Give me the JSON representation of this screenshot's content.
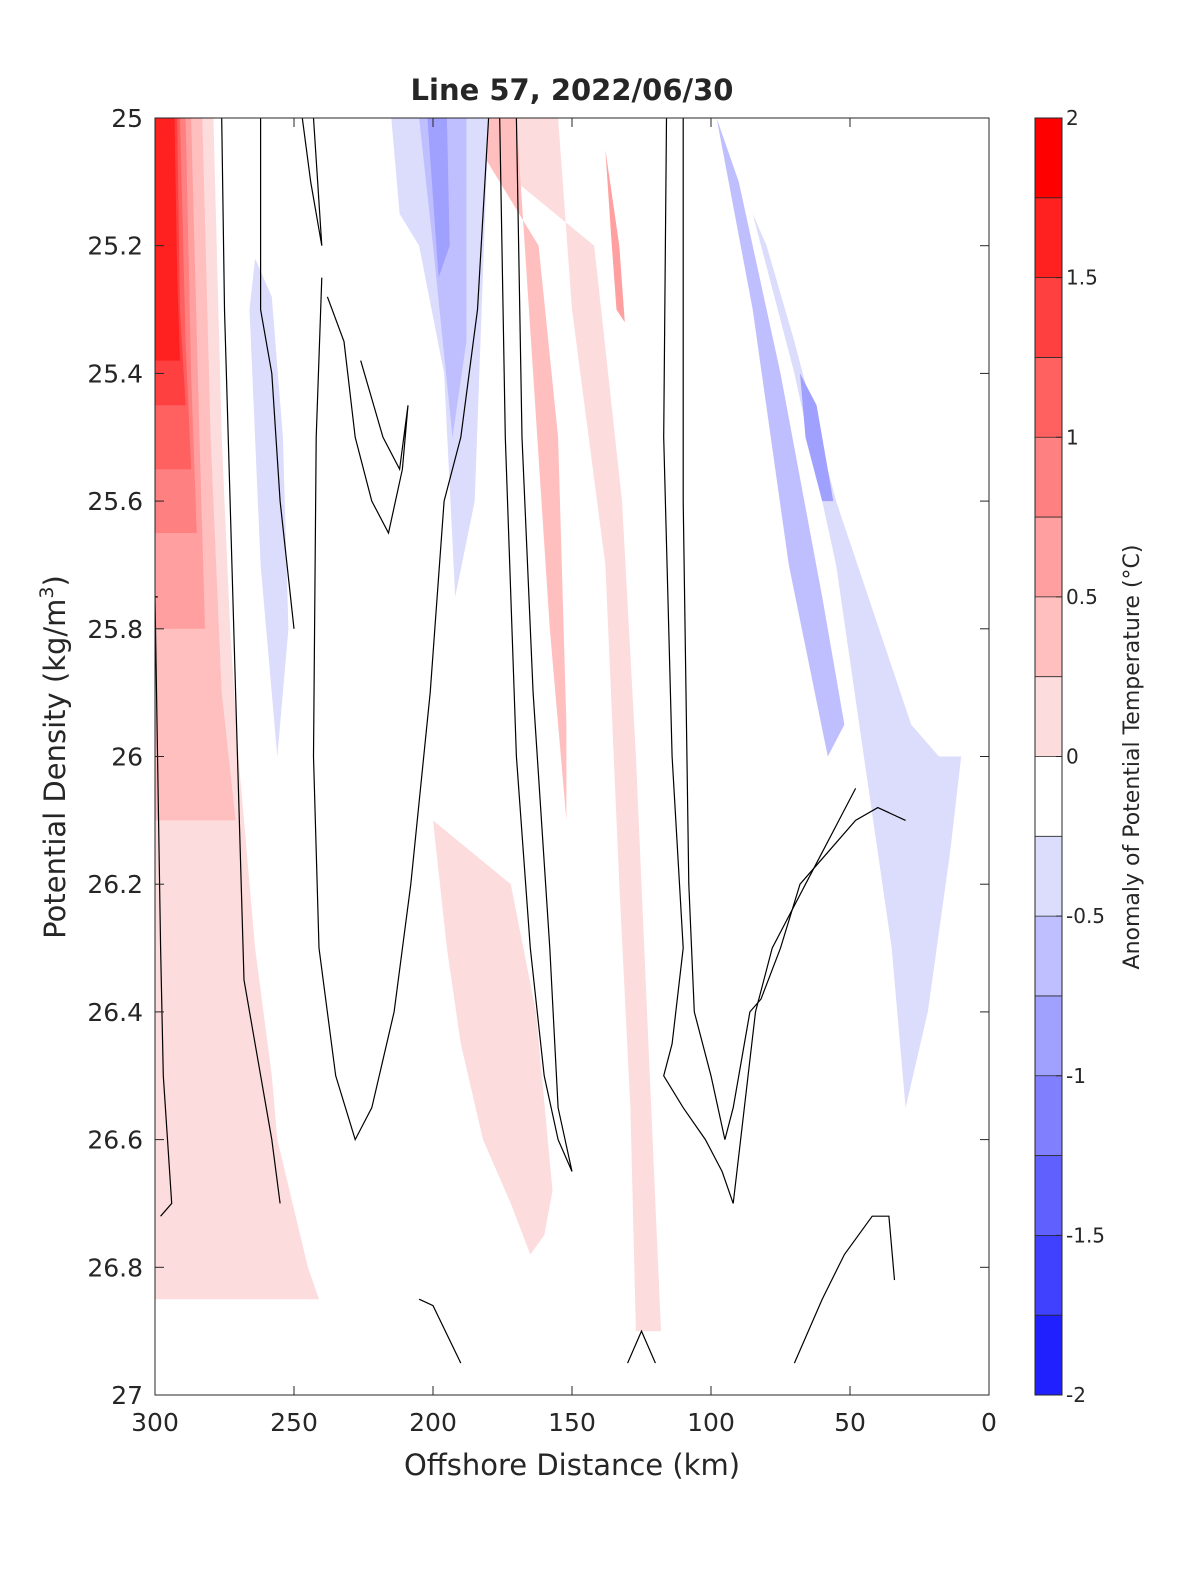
{
  "chart_data": {
    "type": "contour",
    "title": "Line 57, 2022/06/30",
    "xlabel": "Offshore Distance (km)",
    "ylabel": "Potential Density (kg/m",
    "ylabel_sup": "3",
    "ylabel_close": ")",
    "xlim": [
      300,
      0
    ],
    "ylim": [
      25,
      27
    ],
    "y_reversed": true,
    "x_ticks": [
      300,
      250,
      200,
      150,
      100,
      50,
      0
    ],
    "x_tick_labels": [
      "300",
      "250",
      "200",
      "150",
      "100",
      "50",
      "0"
    ],
    "y_ticks": [
      25,
      25.2,
      25.4,
      25.6,
      25.8,
      26,
      26.2,
      26.4,
      26.6,
      26.8,
      27
    ],
    "y_tick_labels": [
      "25",
      "25.2",
      "25.4",
      "25.6",
      "25.8",
      "26",
      "26.2",
      "26.4",
      "26.6",
      "26.8",
      "27"
    ],
    "grid": false,
    "colorbar": {
      "label": "Anomaly of Potential Temperature (°C)",
      "range": [
        -2,
        2
      ],
      "levels": [
        -2,
        -1.75,
        -1.5,
        -1.25,
        -1,
        -0.75,
        -0.5,
        -0.25,
        0,
        0.25,
        0.5,
        0.75,
        1,
        1.25,
        1.5,
        1.75,
        2
      ],
      "tick_values": [
        2,
        1.5,
        1,
        0.5,
        0,
        -0.5,
        -1,
        -1.5,
        -2
      ],
      "tick_labels": [
        "2",
        "1.5",
        "1",
        "0.5",
        "0",
        "-0.5",
        "-1",
        "-1.5",
        "-2"
      ],
      "colors": [
        "#0000ff",
        "#2020ff",
        "#4040ff",
        "#6060ff",
        "#8080ff",
        "#a0a0ff",
        "#bfbfff",
        "#dcdcfc",
        "#ffffff",
        "#fcdcdc",
        "#ffbfbf",
        "#ff9f9f",
        "#ff8080",
        "#ff6060",
        "#ff4040",
        "#ff2020"
      ],
      "top_color": "#ff0000"
    },
    "filled_regions": [
      {
        "level": 0.25,
        "points": [
          [
            300,
            25
          ],
          [
            279,
            25
          ],
          [
            276,
            25.5
          ],
          [
            273,
            25.8
          ],
          [
            270,
            26.0
          ],
          [
            264,
            26.3
          ],
          [
            258,
            26.5
          ],
          [
            256,
            26.6
          ],
          [
            245,
            26.8
          ],
          [
            241,
            26.85
          ],
          [
            300,
            26.85
          ]
        ]
      },
      {
        "level": 0.25,
        "points": [
          [
            198,
            25
          ],
          [
            155,
            25
          ],
          [
            150,
            25.3
          ],
          [
            138,
            25.7
          ],
          [
            133,
            26.2
          ],
          [
            129,
            26.55
          ],
          [
            127,
            26.9
          ],
          [
            118,
            26.9
          ],
          [
            122,
            26.5
          ],
          [
            127,
            26.0
          ],
          [
            132,
            25.6
          ],
          [
            142,
            25.2
          ]
        ]
      },
      {
        "level": 0.25,
        "points": [
          [
            200,
            26.1
          ],
          [
            195,
            26.3
          ],
          [
            190,
            26.45
          ],
          [
            182,
            26.6
          ],
          [
            172,
            26.7
          ],
          [
            165,
            26.78
          ],
          [
            160,
            26.75
          ],
          [
            157,
            26.68
          ],
          [
            163,
            26.4
          ],
          [
            172,
            26.2
          ]
        ]
      },
      {
        "level": 0.5,
        "points": [
          [
            300,
            25
          ],
          [
            283,
            25
          ],
          [
            280,
            25.5
          ],
          [
            276,
            25.9
          ],
          [
            271,
            26.1
          ],
          [
            300,
            26.1
          ]
        ]
      },
      {
        "level": 0.5,
        "points": [
          [
            190,
            25
          ],
          [
            170,
            25
          ],
          [
            164,
            25.4
          ],
          [
            158,
            25.8
          ],
          [
            152,
            26.1
          ],
          [
            152,
            25.95
          ],
          [
            155,
            25.5
          ],
          [
            162,
            25.2
          ]
        ]
      },
      {
        "level": 0.75,
        "points": [
          [
            300,
            25
          ],
          [
            287,
            25
          ],
          [
            284,
            25.5
          ],
          [
            282,
            25.8
          ],
          [
            300,
            25.8
          ]
        ]
      },
      {
        "level": 0.75,
        "points": [
          [
            138,
            25.05
          ],
          [
            133,
            25.2
          ],
          [
            131,
            25.32
          ],
          [
            134,
            25.3
          ],
          [
            136,
            25.18
          ]
        ]
      },
      {
        "level": 1.0,
        "points": [
          [
            300,
            25
          ],
          [
            289,
            25
          ],
          [
            287,
            25.4
          ],
          [
            285,
            25.65
          ],
          [
            300,
            25.65
          ]
        ]
      },
      {
        "level": 1.25,
        "points": [
          [
            300,
            25
          ],
          [
            291,
            25
          ],
          [
            289,
            25.35
          ],
          [
            287,
            25.55
          ],
          [
            300,
            25.55
          ]
        ]
      },
      {
        "level": 1.5,
        "points": [
          [
            300,
            25
          ],
          [
            292,
            25
          ],
          [
            291,
            25.3
          ],
          [
            289,
            25.45
          ],
          [
            300,
            25.45
          ]
        ]
      },
      {
        "level": 1.75,
        "points": [
          [
            300,
            25
          ],
          [
            293,
            25
          ],
          [
            292,
            25.25
          ],
          [
            291,
            25.38
          ],
          [
            300,
            25.38
          ]
        ]
      },
      {
        "level": -0.25,
        "points": [
          [
            264,
            25.22
          ],
          [
            258,
            25.28
          ],
          [
            254,
            25.5
          ],
          [
            252,
            25.8
          ],
          [
            256,
            26.0
          ],
          [
            262,
            25.7
          ],
          [
            266,
            25.3
          ]
        ]
      },
      {
        "level": -0.25,
        "points": [
          [
            215,
            25
          ],
          [
            180,
            25
          ],
          [
            185,
            25.6
          ],
          [
            192,
            25.75
          ],
          [
            196,
            25.4
          ],
          [
            205,
            25.2
          ],
          [
            212,
            25.15
          ]
        ]
      },
      {
        "level": -0.25,
        "points": [
          [
            100,
            25
          ],
          [
            85,
            25.15
          ],
          [
            70,
            25.4
          ],
          [
            55,
            25.7
          ],
          [
            45,
            26.0
          ],
          [
            35,
            26.3
          ],
          [
            30,
            26.55
          ],
          [
            22,
            26.4
          ],
          [
            14,
            26.15
          ],
          [
            10,
            26.0
          ],
          [
            18,
            26.0
          ],
          [
            28,
            25.95
          ],
          [
            55,
            25.6
          ],
          [
            70,
            25.35
          ],
          [
            80,
            25.2
          ]
        ]
      },
      {
        "level": -0.5,
        "points": [
          [
            205,
            25
          ],
          [
            188,
            25
          ],
          [
            188,
            25.35
          ],
          [
            193,
            25.5
          ],
          [
            200,
            25.2
          ]
        ]
      },
      {
        "level": -0.5,
        "points": [
          [
            98,
            25
          ],
          [
            90,
            25.1
          ],
          [
            75,
            25.4
          ],
          [
            60,
            25.75
          ],
          [
            52,
            25.95
          ],
          [
            58,
            26.0
          ],
          [
            72,
            25.7
          ],
          [
            85,
            25.3
          ]
        ]
      },
      {
        "level": -0.75,
        "points": [
          [
            202,
            25
          ],
          [
            195,
            25
          ],
          [
            194,
            25.2
          ],
          [
            198,
            25.25
          ]
        ]
      },
      {
        "level": -0.75,
        "points": [
          [
            68,
            25.4
          ],
          [
            62,
            25.45
          ],
          [
            56,
            25.6
          ],
          [
            60,
            25.6
          ],
          [
            66,
            25.5
          ]
        ]
      }
    ],
    "zero_contours": [
      {
        "points": [
          [
            299,
            25.75
          ],
          [
            300,
            25.75
          ],
          [
            298,
            26.3
          ],
          [
            297,
            26.5
          ],
          [
            294,
            26.7
          ],
          [
            298,
            26.72
          ]
        ]
      },
      {
        "points": [
          [
            276,
            25.0
          ],
          [
            275,
            25.3
          ],
          [
            273,
            25.6
          ],
          [
            271,
            25.9
          ],
          [
            269,
            26.2
          ],
          [
            268,
            26.35
          ],
          [
            264,
            26.45
          ],
          [
            258,
            26.6
          ],
          [
            255,
            26.7
          ]
        ]
      },
      {
        "points": [
          [
            262,
            25.0
          ],
          [
            262,
            25.3
          ],
          [
            258,
            25.4
          ],
          [
            255,
            25.6
          ],
          [
            250,
            25.8
          ]
        ]
      },
      {
        "points": [
          [
            247,
            25.0
          ],
          [
            244,
            25.1
          ],
          [
            240,
            25.2
          ],
          [
            243,
            25.0
          ]
        ]
      },
      {
        "points": [
          [
            238,
            25.28
          ],
          [
            232,
            25.35
          ],
          [
            228,
            25.5
          ],
          [
            222,
            25.6
          ],
          [
            216,
            25.65
          ],
          [
            211,
            25.55
          ],
          [
            209,
            25.45
          ],
          [
            212,
            25.55
          ],
          [
            218,
            25.5
          ],
          [
            226,
            25.38
          ]
        ]
      },
      {
        "points": [
          [
            240,
            25.25
          ],
          [
            242,
            25.5
          ],
          [
            243,
            26.0
          ],
          [
            241,
            26.3
          ],
          [
            235,
            26.5
          ],
          [
            228,
            26.6
          ],
          [
            222,
            26.55
          ],
          [
            214,
            26.4
          ],
          [
            208,
            26.2
          ],
          [
            201,
            25.9
          ],
          [
            196,
            25.6
          ],
          [
            190,
            25.5
          ],
          [
            184,
            25.3
          ],
          [
            180,
            25.0
          ]
        ]
      },
      {
        "points": [
          [
            176,
            25.0
          ],
          [
            174,
            25.5
          ],
          [
            170,
            26.0
          ],
          [
            165,
            26.3
          ],
          [
            160,
            26.5
          ],
          [
            155,
            26.6
          ],
          [
            150,
            26.65
          ],
          [
            155,
            26.55
          ],
          [
            158,
            26.3
          ],
          [
            164,
            25.9
          ],
          [
            168,
            25.5
          ],
          [
            170,
            25.0
          ]
        ]
      },
      {
        "points": [
          [
            116,
            25.0
          ],
          [
            117,
            25.5
          ],
          [
            114,
            26.0
          ],
          [
            110,
            26.3
          ],
          [
            114,
            26.45
          ],
          [
            117,
            26.5
          ],
          [
            110,
            26.55
          ],
          [
            102,
            26.6
          ],
          [
            96,
            26.65
          ],
          [
            92,
            26.7
          ],
          [
            84,
            26.4
          ],
          [
            78,
            26.3
          ],
          [
            66,
            26.2
          ],
          [
            60,
            26.15
          ],
          [
            54,
            26.1
          ],
          [
            48,
            26.05
          ]
        ]
      },
      {
        "points": [
          [
            110,
            25.0
          ],
          [
            110,
            25.6
          ],
          [
            108,
            26.2
          ],
          [
            106,
            26.4
          ],
          [
            100,
            26.5
          ],
          [
            95,
            26.6
          ],
          [
            92,
            26.55
          ],
          [
            86,
            26.4
          ],
          [
            82,
            26.38
          ],
          [
            75,
            26.3
          ],
          [
            68,
            26.2
          ],
          [
            58,
            26.15
          ],
          [
            48,
            26.1
          ],
          [
            40,
            26.08
          ],
          [
            30,
            26.1
          ]
        ]
      },
      {
        "points": [
          [
            70,
            26.95
          ],
          [
            60,
            26.85
          ],
          [
            52,
            26.78
          ],
          [
            42,
            26.72
          ],
          [
            36,
            26.72
          ],
          [
            34,
            26.82
          ]
        ]
      },
      {
        "points": [
          [
            205,
            26.85
          ],
          [
            200,
            26.86
          ],
          [
            190,
            26.95
          ]
        ]
      },
      {
        "points": [
          [
            130,
            26.95
          ],
          [
            125,
            26.9
          ],
          [
            120,
            26.95
          ]
        ]
      }
    ]
  }
}
